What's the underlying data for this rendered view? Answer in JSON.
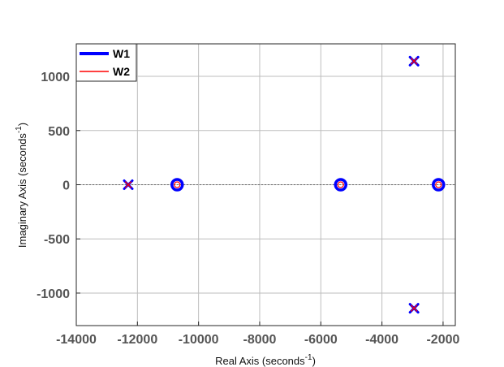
{
  "chart_data": {
    "type": "scatter",
    "title": "",
    "xlabel": "Real Axis (seconds",
    "xlabel_sup": "-1",
    "xlabel_end": ")",
    "ylabel": "Imaginary Axis (seconds",
    "ylabel_sup": "-1",
    "ylabel_end": ")",
    "xlim": [
      -14000,
      -1600
    ],
    "ylim": [
      -1300,
      1300
    ],
    "xticks": [
      -14000,
      -12000,
      -10000,
      -8000,
      -6000,
      -4000,
      -2000
    ],
    "xtick_labels": [
      "-14000",
      "-12000",
      "-10000",
      "-8000",
      "-6000",
      "-4000",
      "-2000"
    ],
    "yticks": [
      -1000,
      -500,
      0,
      500,
      1000
    ],
    "ytick_labels": [
      "-1000",
      "-500",
      "0",
      "500",
      "1000"
    ],
    "grid": true,
    "legend_position": "top-left",
    "series": [
      {
        "name": "W1",
        "color": "#0000ff",
        "poles": [
          {
            "re": -12300,
            "im": 0
          },
          {
            "re": -2950,
            "im": 1140
          },
          {
            "re": -2950,
            "im": -1140
          }
        ],
        "zeros": [
          {
            "re": -10700,
            "im": 0
          },
          {
            "re": -5350,
            "im": 0
          },
          {
            "re": -2150,
            "im": 0
          }
        ]
      },
      {
        "name": "W2",
        "color": "#ff0000",
        "poles": [
          {
            "re": -12300,
            "im": 0
          },
          {
            "re": -2950,
            "im": 1140
          },
          {
            "re": -2950,
            "im": -1140
          }
        ],
        "zeros": [
          {
            "re": -10700,
            "im": 0
          },
          {
            "re": -5350,
            "im": 0
          },
          {
            "re": -2150,
            "im": 0
          }
        ]
      }
    ]
  }
}
